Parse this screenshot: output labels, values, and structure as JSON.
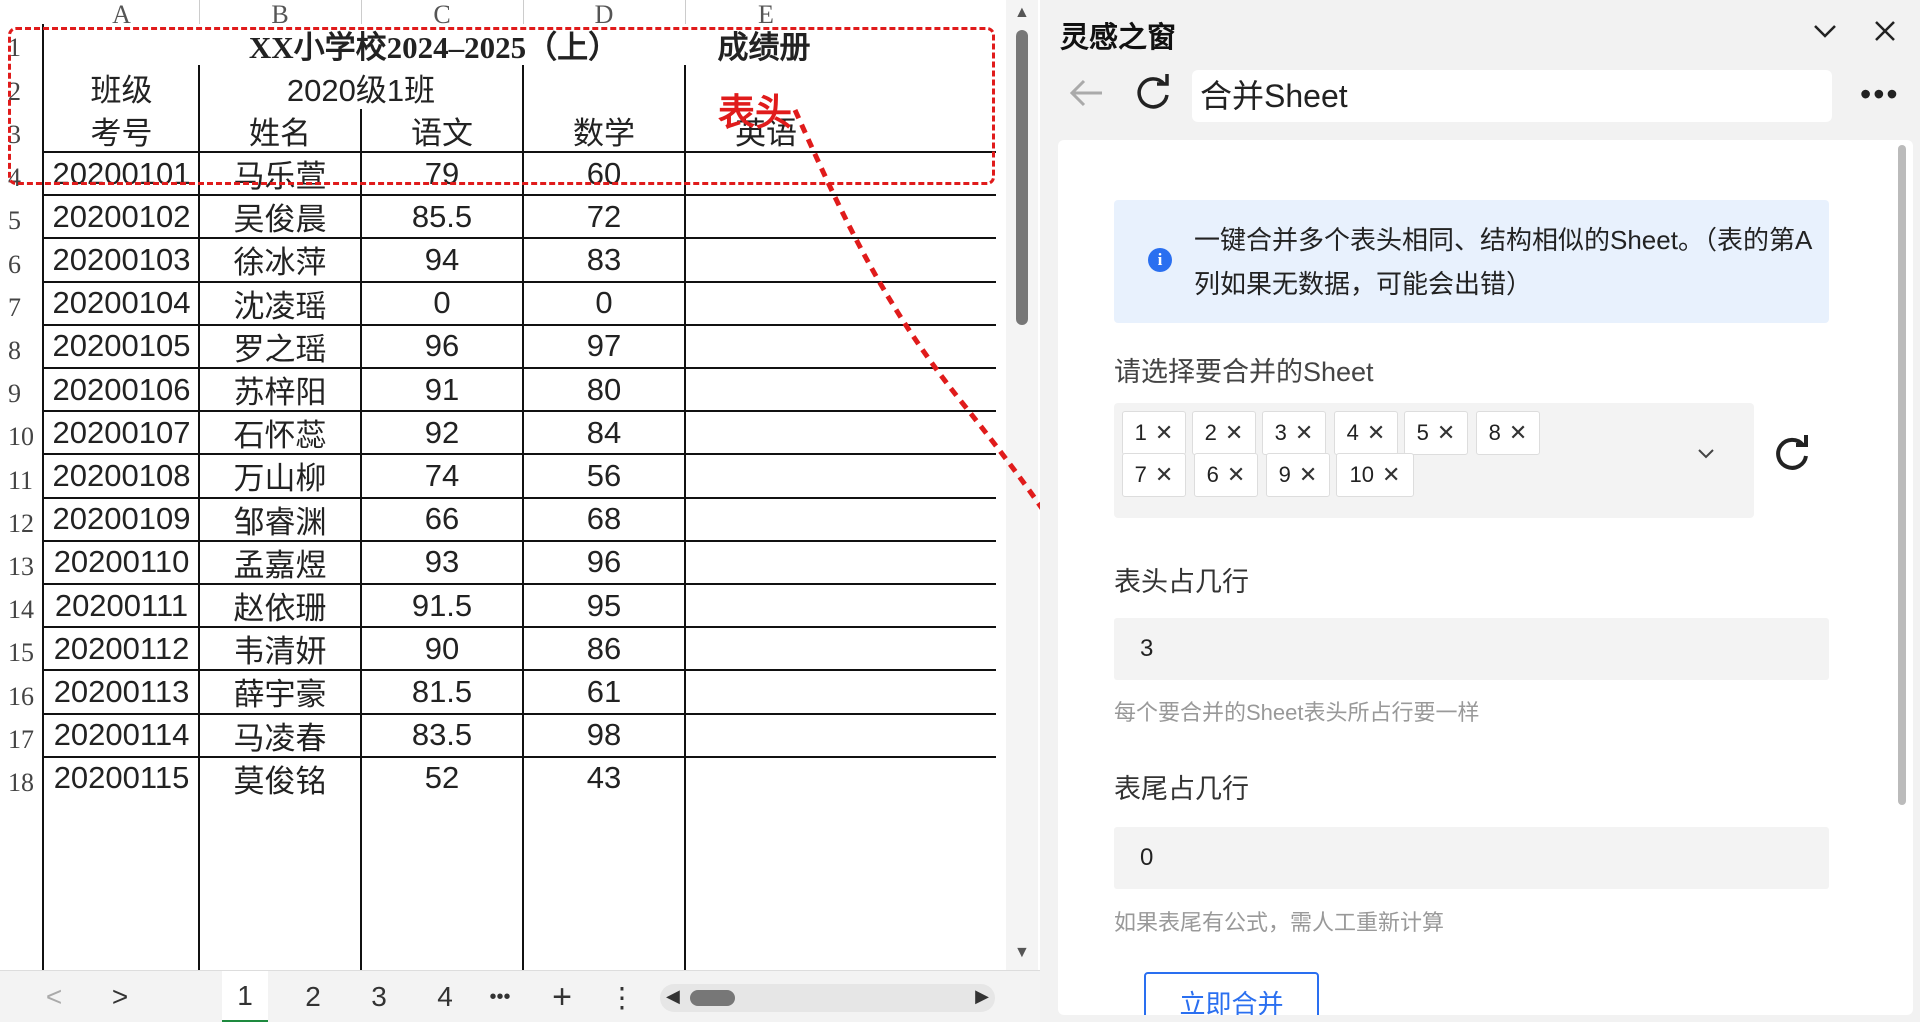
{
  "sheet": {
    "columns": [
      "A",
      "B",
      "C",
      "D",
      "E"
    ],
    "rows": [
      "1",
      "2",
      "3",
      "4",
      "5",
      "6",
      "7",
      "8",
      "9",
      "10",
      "11",
      "12",
      "13",
      "14",
      "15",
      "16",
      "17",
      "18"
    ],
    "title": "XX小学校2024–2025（上）",
    "title_right": "成绩册",
    "class_label": "班级",
    "class_value": "2020级1班",
    "headers": [
      "考号",
      "姓名",
      "语文",
      "数学",
      "英语"
    ],
    "records": [
      {
        "id": "20200101",
        "name": "马乐萱",
        "chinese": "79",
        "math": "60"
      },
      {
        "id": "20200102",
        "name": "吴俊晨",
        "chinese": "85.5",
        "math": "72"
      },
      {
        "id": "20200103",
        "name": "徐冰萍",
        "chinese": "94",
        "math": "83"
      },
      {
        "id": "20200104",
        "name": "沈凌瑶",
        "chinese": "0",
        "math": "0"
      },
      {
        "id": "20200105",
        "name": "罗之瑶",
        "chinese": "96",
        "math": "97"
      },
      {
        "id": "20200106",
        "name": "苏梓阳",
        "chinese": "91",
        "math": "80"
      },
      {
        "id": "20200107",
        "name": "石怀蕊",
        "chinese": "92",
        "math": "84"
      },
      {
        "id": "20200108",
        "name": "万山柳",
        "chinese": "74",
        "math": "56"
      },
      {
        "id": "20200109",
        "name": "邹睿渊",
        "chinese": "66",
        "math": "68"
      },
      {
        "id": "20200110",
        "name": "孟嘉煜",
        "chinese": "93",
        "math": "96"
      },
      {
        "id": "20200111",
        "name": "赵依珊",
        "chinese": "91.5",
        "math": "95"
      },
      {
        "id": "20200112",
        "name": "韦清妍",
        "chinese": "90",
        "math": "86"
      },
      {
        "id": "20200113",
        "name": "薛宇豪",
        "chinese": "81.5",
        "math": "61"
      },
      {
        "id": "20200114",
        "name": "马凌春",
        "chinese": "83.5",
        "math": "98"
      },
      {
        "id": "20200115",
        "name": "莫俊铭",
        "chinese": "52",
        "math": "43"
      }
    ],
    "annotation": "表头",
    "annotation_color": "#e01b1b"
  },
  "tabbar": {
    "prev": "<",
    "next": ">",
    "tabs": [
      "1",
      "2",
      "3",
      "4"
    ],
    "more": "•••",
    "add": "+",
    "menu": "⋮",
    "active_tab": "1",
    "active_color": "#1e8a3f"
  },
  "panel": {
    "title": "灵感之窗",
    "url": "合并Sheet",
    "more": "•••",
    "info": "一键合并多个表头相同、结构相似的Sheet。（表的第A列如果无数据，可能会出错）",
    "select_label": "请选择要合并的Sheet",
    "tags": [
      "1",
      "2",
      "3",
      "4",
      "5",
      "8",
      "7",
      "6",
      "9",
      "10"
    ],
    "header_rows_label": "表头占几行",
    "header_rows_value": "3",
    "header_rows_hint": "每个要合并的Sheet表头所占行要一样",
    "footer_rows_label": "表尾占几行",
    "footer_rows_value": "0",
    "footer_rows_hint": "如果表尾有公式，需人工重新计算",
    "merge_button": "立即合并",
    "accent_color": "#2a6ff0"
  }
}
